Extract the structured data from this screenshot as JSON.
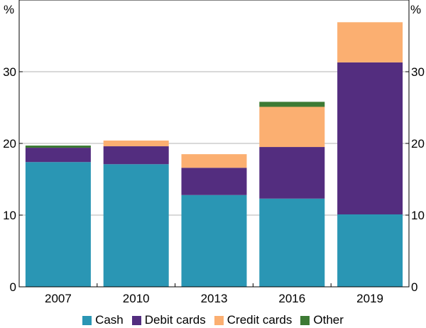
{
  "chart_data": {
    "type": "bar",
    "stacked": true,
    "categories": [
      "2007",
      "2010",
      "2013",
      "2016",
      "2019"
    ],
    "series": [
      {
        "name": "Cash",
        "color": "#2a96b4",
        "values": [
          17.4,
          17.1,
          12.8,
          12.3,
          10.1
        ]
      },
      {
        "name": "Debit cards",
        "color": "#532d7f",
        "values": [
          2.0,
          2.5,
          3.8,
          7.2,
          21.2
        ]
      },
      {
        "name": "Credit cards",
        "color": "#fbaf71",
        "values": [
          0.0,
          0.8,
          1.9,
          5.6,
          5.6
        ]
      },
      {
        "name": "Other",
        "color": "#3d7a34",
        "values": [
          0.3,
          0.0,
          0.0,
          0.7,
          0.0
        ]
      }
    ],
    "yticks": [
      0,
      10,
      20,
      30
    ],
    "ylim": [
      0,
      40
    ],
    "unit_left": "%",
    "unit_right": "%",
    "grid": true,
    "legend_position": "bottom"
  }
}
